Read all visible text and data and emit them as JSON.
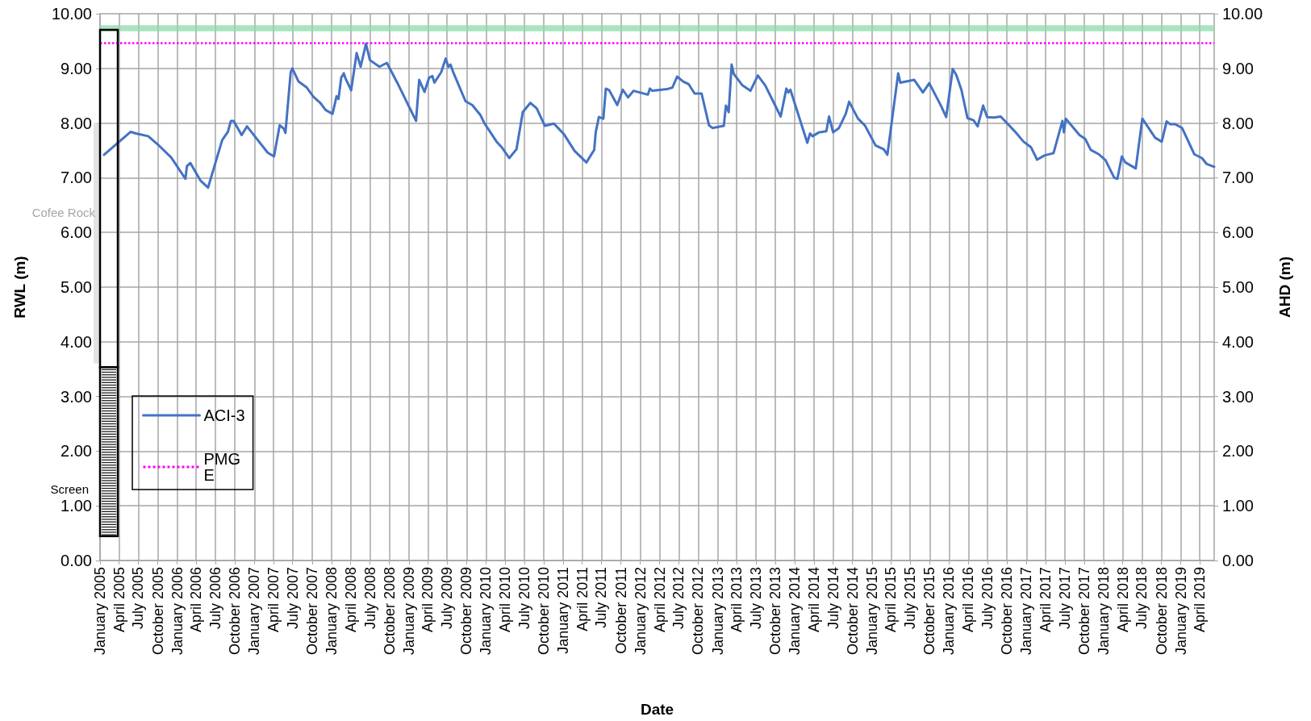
{
  "chart_data": {
    "type": "line",
    "xlabel": "Date",
    "ylabel": "RWL (m)",
    "y2label": "AHD (m)",
    "xlim": [
      "2005-01-01",
      "2019-06-08"
    ],
    "xticks": [
      {
        "value": "2005-01",
        "label": "January 2005"
      },
      {
        "value": "2005-04",
        "label": "April 2005"
      },
      {
        "value": "2005-07",
        "label": "July 2005"
      },
      {
        "value": "2005-10",
        "label": "October 2005"
      },
      {
        "value": "2006-01",
        "label": "January 2006"
      },
      {
        "value": "2006-04",
        "label": "April 2006"
      },
      {
        "value": "2006-07",
        "label": "July 2006"
      },
      {
        "value": "2006-10",
        "label": "October 2006"
      },
      {
        "value": "2007-01",
        "label": "January 2007"
      },
      {
        "value": "2007-04",
        "label": "April 2007"
      },
      {
        "value": "2007-07",
        "label": "July 2007"
      },
      {
        "value": "2007-10",
        "label": "October 2007"
      },
      {
        "value": "2008-01",
        "label": "January 2008"
      },
      {
        "value": "2008-04",
        "label": "April 2008"
      },
      {
        "value": "2008-07",
        "label": "July 2008"
      },
      {
        "value": "2008-10",
        "label": "October 2008"
      },
      {
        "value": "2009-01",
        "label": "January 2009"
      },
      {
        "value": "2009-04",
        "label": "April 2009"
      },
      {
        "value": "2009-07",
        "label": "July 2009"
      },
      {
        "value": "2009-10",
        "label": "October 2009"
      },
      {
        "value": "2010-01",
        "label": "January 2010"
      },
      {
        "value": "2010-04",
        "label": "April 2010"
      },
      {
        "value": "2010-07",
        "label": "July 2010"
      },
      {
        "value": "2010-10",
        "label": "October 2010"
      },
      {
        "value": "2011-01",
        "label": "January 2011"
      },
      {
        "value": "2011-04",
        "label": "April 2011"
      },
      {
        "value": "2011-07",
        "label": "July 2011"
      },
      {
        "value": "2011-10",
        "label": "October 2011"
      },
      {
        "value": "2012-01",
        "label": "January 2012"
      },
      {
        "value": "2012-04",
        "label": "April 2012"
      },
      {
        "value": "2012-07",
        "label": "July 2012"
      },
      {
        "value": "2012-10",
        "label": "October 2012"
      },
      {
        "value": "2013-01",
        "label": "January 2013"
      },
      {
        "value": "2013-04",
        "label": "April 2013"
      },
      {
        "value": "2013-07",
        "label": "July 2013"
      },
      {
        "value": "2013-10",
        "label": "October 2013"
      },
      {
        "value": "2014-01",
        "label": "January 2014"
      },
      {
        "value": "2014-04",
        "label": "April 2014"
      },
      {
        "value": "2014-07",
        "label": "July 2014"
      },
      {
        "value": "2014-10",
        "label": "October 2014"
      },
      {
        "value": "2015-01",
        "label": "January 2015"
      },
      {
        "value": "2015-04",
        "label": "April 2015"
      },
      {
        "value": "2015-07",
        "label": "July 2015"
      },
      {
        "value": "2015-10",
        "label": "October 2015"
      },
      {
        "value": "2016-01",
        "label": "January 2016"
      },
      {
        "value": "2016-04",
        "label": "April 2016"
      },
      {
        "value": "2016-07",
        "label": "July 2016"
      },
      {
        "value": "2016-10",
        "label": "October 2016"
      },
      {
        "value": "2017-01",
        "label": "January 2017"
      },
      {
        "value": "2017-04",
        "label": "April 2017"
      },
      {
        "value": "2017-07",
        "label": "July 2017"
      },
      {
        "value": "2017-10",
        "label": "October 2017"
      },
      {
        "value": "2018-01",
        "label": "January 2018"
      },
      {
        "value": "2018-04",
        "label": "April 2018"
      },
      {
        "value": "2018-07",
        "label": "July 2018"
      },
      {
        "value": "2018-10",
        "label": "October 2018"
      },
      {
        "value": "2019-01",
        "label": "January 2019"
      },
      {
        "value": "2019-04",
        "label": "April 2019"
      }
    ],
    "ylim": [
      0,
      10
    ],
    "yticks": [
      {
        "value": 0,
        "label": "0.00"
      },
      {
        "value": 1,
        "label": "1.00"
      },
      {
        "value": 2,
        "label": "2.00"
      },
      {
        "value": 3,
        "label": "3.00"
      },
      {
        "value": 4,
        "label": "4.00"
      },
      {
        "value": 5,
        "label": "5.00"
      },
      {
        "value": 6,
        "label": "6.00"
      },
      {
        "value": 7,
        "label": "7.00"
      },
      {
        "value": 8,
        "label": "8.00"
      },
      {
        "value": 9,
        "label": "9.00"
      },
      {
        "value": 10,
        "label": "10.00"
      }
    ],
    "y2lim": [
      0,
      10
    ],
    "y2ticks": [
      {
        "value": 0,
        "label": "0.00"
      },
      {
        "value": 1,
        "label": "1.00"
      },
      {
        "value": 2,
        "label": "2.00"
      },
      {
        "value": 3,
        "label": "3.00"
      },
      {
        "value": 4,
        "label": "4.00"
      },
      {
        "value": 5,
        "label": "5.00"
      },
      {
        "value": 6,
        "label": "6.00"
      },
      {
        "value": 7,
        "label": "7.00"
      },
      {
        "value": 8,
        "label": "8.00"
      },
      {
        "value": 9,
        "label": "9.00"
      },
      {
        "value": 10,
        "label": "10.00"
      }
    ],
    "series": [
      {
        "name": "ACI-3",
        "color": "#4472c4",
        "x": [
          "2005-01-20",
          "2005-05-26",
          "2005-06-20",
          "2005-08-17",
          "2005-10-01",
          "2005-12-04",
          "2006-02-09",
          "2006-02-16",
          "2006-03-04",
          "2006-04-21",
          "2006-05-27",
          "2006-08-02",
          "2006-08-29",
          "2006-09-12",
          "2006-09-25",
          "2006-11-02",
          "2006-11-27",
          "2007-03-05",
          "2007-04-04",
          "2007-05-01",
          "2007-05-20",
          "2007-05-28",
          "2007-06-22",
          "2007-06-30",
          "2007-07-29",
          "2007-09-06",
          "2007-10-08",
          "2007-11-09",
          "2007-12-04",
          "2008-01-06",
          "2008-01-25",
          "2008-02-03",
          "2008-02-16",
          "2008-02-28",
          "2008-03-08",
          "2008-04-03",
          "2008-04-29",
          "2008-05-18",
          "2008-06-12",
          "2008-07-01",
          "2008-08-15",
          "2008-09-19",
          "2008-11-07",
          "2009-02-04",
          "2009-02-19",
          "2009-03-16",
          "2009-04-07",
          "2009-04-22",
          "2009-05-02",
          "2009-06-03",
          "2009-06-24",
          "2009-07-07",
          "2009-07-17",
          "2009-07-30",
          "2009-09-26",
          "2009-10-28",
          "2009-12-05",
          "2009-12-24",
          "2010-02-20",
          "2010-03-16",
          "2010-04-21",
          "2010-05-25",
          "2010-06-24",
          "2010-07-30",
          "2010-08-29",
          "2010-10-06",
          "2010-11-18",
          "2011-01-04",
          "2011-02-24",
          "2011-04-21",
          "2011-05-28",
          "2011-06-04",
          "2011-06-19",
          "2011-07-10",
          "2011-07-22",
          "2011-08-07",
          "2011-09-14",
          "2011-10-10",
          "2011-11-04",
          "2011-11-30",
          "2012-02-06",
          "2012-02-15",
          "2012-02-27",
          "2012-05-06",
          "2012-06-01",
          "2012-06-23",
          "2012-07-22",
          "2012-08-17",
          "2012-09-14",
          "2012-10-17",
          "2012-11-21",
          "2012-12-07",
          "2013-01-30",
          "2013-02-09",
          "2013-02-22",
          "2013-03-08",
          "2013-03-18",
          "2013-04-28",
          "2013-06-05",
          "2013-07-10",
          "2013-08-14",
          "2013-09-15",
          "2013-10-26",
          "2013-11-22",
          "2013-12-01",
          "2013-12-11",
          "2014-03-01",
          "2014-03-14",
          "2014-03-26",
          "2014-04-25",
          "2014-05-30",
          "2014-06-12",
          "2014-07-01",
          "2014-07-29",
          "2014-08-30",
          "2014-09-15",
          "2014-10-27",
          "2014-11-28",
          "2015-01-18",
          "2015-02-26",
          "2015-03-15",
          "2015-05-05",
          "2015-05-15",
          "2015-07-20",
          "2015-08-30",
          "2015-09-29",
          "2015-11-23",
          "2015-12-18",
          "2016-01-18",
          "2016-02-04",
          "2016-02-28",
          "2016-03-28",
          "2016-04-26",
          "2016-05-15",
          "2016-06-10",
          "2016-06-29",
          "2016-07-30",
          "2016-09-01",
          "2016-11-04",
          "2016-12-18",
          "2017-01-22",
          "2017-02-20",
          "2017-03-28",
          "2017-05-09",
          "2017-06-20",
          "2017-06-27",
          "2017-07-06",
          "2017-09-09",
          "2017-10-06",
          "2017-11-01",
          "2017-12-09",
          "2018-01-10",
          "2018-02-20",
          "2018-03-07",
          "2018-03-28",
          "2018-04-14",
          "2018-06-02",
          "2018-07-03",
          "2018-09-02",
          "2018-10-03",
          "2018-10-26",
          "2018-11-11",
          "2018-12-06",
          "2019-01-07",
          "2019-03-06",
          "2019-04-11",
          "2019-05-04",
          "2019-06-08"
        ],
        "values": [
          7.42,
          7.84,
          7.81,
          7.76,
          7.61,
          7.37,
          6.98,
          7.21,
          7.27,
          6.95,
          6.82,
          7.69,
          7.84,
          8.04,
          8.04,
          7.78,
          7.94,
          7.46,
          7.39,
          7.96,
          7.9,
          7.82,
          8.93,
          9.0,
          8.76,
          8.65,
          8.48,
          8.37,
          8.24,
          8.17,
          8.49,
          8.44,
          8.83,
          8.91,
          8.81,
          8.6,
          9.28,
          9.03,
          9.45,
          9.15,
          9.03,
          9.1,
          8.74,
          8.04,
          8.79,
          8.57,
          8.83,
          8.86,
          8.74,
          8.93,
          9.18,
          9.03,
          9.07,
          8.93,
          8.4,
          8.33,
          8.15,
          8.0,
          7.66,
          7.56,
          7.36,
          7.52,
          8.2,
          8.37,
          8.27,
          7.95,
          7.99,
          7.8,
          7.49,
          7.28,
          7.51,
          7.83,
          8.11,
          8.08,
          8.63,
          8.6,
          8.33,
          8.61,
          8.47,
          8.59,
          8.52,
          8.63,
          8.59,
          8.62,
          8.65,
          8.85,
          8.76,
          8.71,
          8.54,
          8.54,
          7.96,
          7.91,
          7.95,
          8.32,
          8.2,
          9.07,
          8.9,
          8.69,
          8.59,
          8.87,
          8.69,
          8.44,
          8.12,
          8.63,
          8.56,
          8.61,
          7.64,
          7.81,
          7.76,
          7.83,
          7.85,
          8.12,
          7.83,
          7.91,
          8.17,
          8.39,
          8.08,
          7.96,
          7.59,
          7.52,
          7.42,
          8.91,
          8.74,
          8.79,
          8.56,
          8.73,
          8.32,
          8.11,
          8.99,
          8.88,
          8.61,
          8.09,
          8.05,
          7.94,
          8.32,
          8.11,
          8.1,
          8.12,
          7.86,
          7.66,
          7.56,
          7.33,
          7.41,
          7.45,
          8.04,
          7.83,
          8.08,
          7.78,
          7.71,
          7.51,
          7.43,
          7.32,
          7.0,
          6.98,
          7.39,
          7.28,
          7.17,
          8.08,
          7.73,
          7.66,
          8.03,
          7.98,
          7.98,
          7.91,
          7.43,
          7.36,
          7.25,
          7.2
        ]
      }
    ],
    "ref_lines": [
      {
        "axis": "y",
        "value": 9.46,
        "label": "PMG\nE",
        "color": "#ff00ff",
        "line_style": "dotted"
      }
    ],
    "bands": [
      {
        "axis": "y",
        "from": 9.68,
        "to": 9.79,
        "color": "#8fd9a8"
      }
    ],
    "annotations": [
      "Cofee Rock",
      "Screen"
    ],
    "grid": true,
    "legend": "bottom left"
  }
}
